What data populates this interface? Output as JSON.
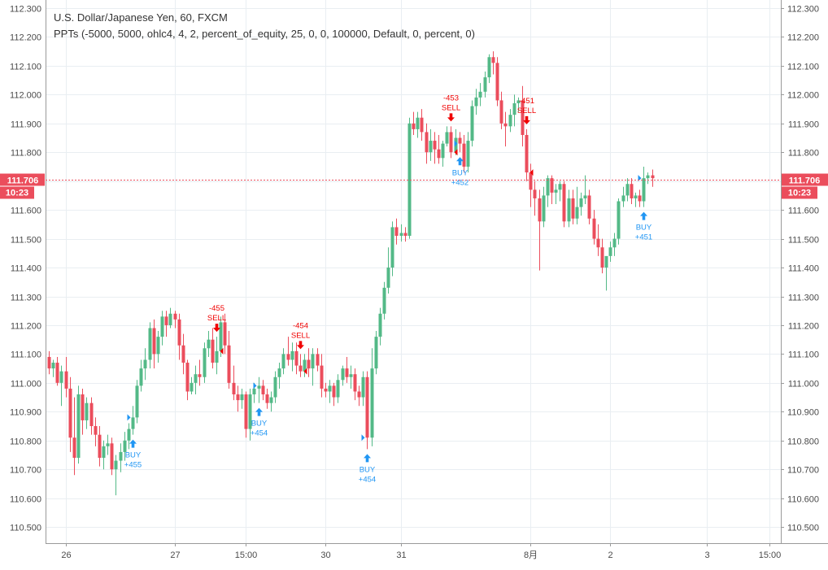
{
  "chart_data": {
    "type": "candlestick",
    "title": "U.S. Dollar/Japanese Yen, 60, FXCM",
    "subtitle": "PPTs (-5000, 5000, ohlc4, 4, 2, percent_of_equity, 25, 0, 0, 100000, Default, 0, percent, 0)",
    "ylim": [
      110.44,
      112.3
    ],
    "y_ticks": [
      "112.300",
      "112.200",
      "112.100",
      "112.000",
      "111.900",
      "111.800",
      "111.700",
      "111.600",
      "111.500",
      "111.400",
      "111.300",
      "111.200",
      "111.100",
      "111.000",
      "110.900",
      "110.800",
      "110.700",
      "110.600",
      "110.500"
    ],
    "x_ticks": [
      "26",
      "27",
      "15:00",
      "30",
      "31",
      "8月",
      "2",
      "3",
      "15:00"
    ],
    "x_tick_index": [
      4,
      30,
      47,
      66,
      84,
      115,
      134,
      157,
      172
    ],
    "grid": true,
    "last_price": "111.706",
    "last_value": 111.706,
    "countdown": "10:23",
    "colors": {
      "up": "#53b987",
      "down": "#eb4d5c",
      "buy": "#2196f3",
      "sell": "#f00000",
      "price_line": "#eb4d5c"
    },
    "candles": [
      [
        111.09,
        111.11,
        111.03,
        111.05
      ],
      [
        111.05,
        111.08,
        111.02,
        111.07
      ],
      [
        111.07,
        111.09,
        110.99,
        111.0
      ],
      [
        111.0,
        111.06,
        110.92,
        111.04
      ],
      [
        111.04,
        111.09,
        110.95,
        110.98
      ],
      [
        110.98,
        111.02,
        110.76,
        110.81
      ],
      [
        110.81,
        110.95,
        110.68,
        110.74
      ],
      [
        110.74,
        110.99,
        110.72,
        110.96
      ],
      [
        110.96,
        110.98,
        110.82,
        110.87
      ],
      [
        110.87,
        110.95,
        110.84,
        110.93
      ],
      [
        110.93,
        110.95,
        110.82,
        110.85
      ],
      [
        110.85,
        110.88,
        110.78,
        110.82
      ],
      [
        110.82,
        110.85,
        110.71,
        110.74
      ],
      [
        110.74,
        110.8,
        110.7,
        110.78
      ],
      [
        110.78,
        110.82,
        110.75,
        110.79
      ],
      [
        110.79,
        110.81,
        110.68,
        110.7
      ],
      [
        110.7,
        110.75,
        110.61,
        110.73
      ],
      [
        110.73,
        110.79,
        110.69,
        110.76
      ],
      [
        110.76,
        110.83,
        110.73,
        110.8
      ],
      [
        110.8,
        110.86,
        110.77,
        110.84
      ],
      [
        110.84,
        110.92,
        110.82,
        110.88
      ],
      [
        110.88,
        111.01,
        110.86,
        110.99
      ],
      [
        110.99,
        111.08,
        110.97,
        111.05
      ],
      [
        111.05,
        111.12,
        111.01,
        111.08
      ],
      [
        111.08,
        111.21,
        111.05,
        111.19
      ],
      [
        111.19,
        111.22,
        111.05,
        111.1
      ],
      [
        111.1,
        111.18,
        111.07,
        111.16
      ],
      [
        111.16,
        111.25,
        111.13,
        111.23
      ],
      [
        111.23,
        111.25,
        111.16,
        111.2
      ],
      [
        111.2,
        111.26,
        111.19,
        111.24
      ],
      [
        111.24,
        111.25,
        111.19,
        111.22
      ],
      [
        111.22,
        111.24,
        111.08,
        111.13
      ],
      [
        111.13,
        111.17,
        111.03,
        111.07
      ],
      [
        111.07,
        111.08,
        110.94,
        110.97
      ],
      [
        110.97,
        111.02,
        110.96,
        111.0
      ],
      [
        111.0,
        111.06,
        110.96,
        111.03
      ],
      [
        111.03,
        111.08,
        110.99,
        111.02
      ],
      [
        111.02,
        111.14,
        111.0,
        111.12
      ],
      [
        111.12,
        111.18,
        111.09,
        111.15
      ],
      [
        111.15,
        111.19,
        111.05,
        111.07
      ],
      [
        111.07,
        111.16,
        111.03,
        111.11
      ],
      [
        111.11,
        111.23,
        111.09,
        111.21
      ],
      [
        111.21,
        111.24,
        111.1,
        111.13
      ],
      [
        111.13,
        111.18,
        110.98,
        111.0
      ],
      [
        111.0,
        111.06,
        110.94,
        110.96
      ],
      [
        110.96,
        110.99,
        110.9,
        110.94
      ],
      [
        110.94,
        110.98,
        110.91,
        110.96
      ],
      [
        110.96,
        110.97,
        110.81,
        110.84
      ],
      [
        110.84,
        110.98,
        110.8,
        110.96
      ],
      [
        110.96,
        111.0,
        110.93,
        110.98
      ],
      [
        110.98,
        111.02,
        110.93,
        110.99
      ],
      [
        110.99,
        111.01,
        110.94,
        110.96
      ],
      [
        110.96,
        110.98,
        110.91,
        110.93
      ],
      [
        110.93,
        110.97,
        110.9,
        110.95
      ],
      [
        110.95,
        111.04,
        110.93,
        111.02
      ],
      [
        111.02,
        111.07,
        110.98,
        111.05
      ],
      [
        111.05,
        111.12,
        111.03,
        111.1
      ],
      [
        111.1,
        111.16,
        111.06,
        111.08
      ],
      [
        111.08,
        111.14,
        111.04,
        111.11
      ],
      [
        111.11,
        111.14,
        111.03,
        111.06
      ],
      [
        111.06,
        111.1,
        111.02,
        111.04
      ],
      [
        111.04,
        111.1,
        111.02,
        111.08
      ],
      [
        111.08,
        111.12,
        111.02,
        111.05
      ],
      [
        111.05,
        111.12,
        110.99,
        111.1
      ],
      [
        111.1,
        111.12,
        111.04,
        111.06
      ],
      [
        111.06,
        111.1,
        110.95,
        110.98
      ],
      [
        110.98,
        111.0,
        110.95,
        110.97
      ],
      [
        110.97,
        111.01,
        110.93,
        110.99
      ],
      [
        110.99,
        111.0,
        110.92,
        110.95
      ],
      [
        110.95,
        111.03,
        110.93,
        111.01
      ],
      [
        111.01,
        111.06,
        110.99,
        111.05
      ],
      [
        111.05,
        111.09,
        111.0,
        111.02
      ],
      [
        111.02,
        111.06,
        110.98,
        111.03
      ],
      [
        111.03,
        111.05,
        110.94,
        110.97
      ],
      [
        110.97,
        110.99,
        110.92,
        110.95
      ],
      [
        110.95,
        111.04,
        110.92,
        111.02
      ],
      [
        111.02,
        111.04,
        110.77,
        110.81
      ],
      [
        110.81,
        111.12,
        110.78,
        111.05
      ],
      [
        111.05,
        111.18,
        111.03,
        111.16
      ],
      [
        111.16,
        111.26,
        111.13,
        111.24
      ],
      [
        111.24,
        111.35,
        111.22,
        111.33
      ],
      [
        111.33,
        111.47,
        111.31,
        111.4
      ],
      [
        111.4,
        111.56,
        111.37,
        111.54
      ],
      [
        111.54,
        111.57,
        111.48,
        111.51
      ],
      [
        111.51,
        111.55,
        111.49,
        111.52
      ],
      [
        111.52,
        111.54,
        111.49,
        111.51
      ],
      [
        111.51,
        111.92,
        111.5,
        111.9
      ],
      [
        111.9,
        111.94,
        111.86,
        111.88
      ],
      [
        111.88,
        111.94,
        111.85,
        111.92
      ],
      [
        111.92,
        111.95,
        111.84,
        111.87
      ],
      [
        111.87,
        111.9,
        111.76,
        111.8
      ],
      [
        111.8,
        111.88,
        111.77,
        111.84
      ],
      [
        111.84,
        111.87,
        111.76,
        111.81
      ],
      [
        111.81,
        111.86,
        111.76,
        111.78
      ],
      [
        111.78,
        111.84,
        111.75,
        111.83
      ],
      [
        111.83,
        111.89,
        111.82,
        111.87
      ],
      [
        111.87,
        111.89,
        111.78,
        111.8
      ],
      [
        111.8,
        111.88,
        111.79,
        111.85
      ],
      [
        111.85,
        111.87,
        111.8,
        111.83
      ],
      [
        111.83,
        111.86,
        111.73,
        111.75
      ],
      [
        111.75,
        111.87,
        111.73,
        111.84
      ],
      [
        111.84,
        111.98,
        111.82,
        111.96
      ],
      [
        111.96,
        112.02,
        111.93,
        111.99
      ],
      [
        111.99,
        112.04,
        111.96,
        112.01
      ],
      [
        112.01,
        112.08,
        111.99,
        112.06
      ],
      [
        112.06,
        112.14,
        112.04,
        112.13
      ],
      [
        112.13,
        112.15,
        112.07,
        112.11
      ],
      [
        112.11,
        112.13,
        111.96,
        111.98
      ],
      [
        111.98,
        112.01,
        111.88,
        111.9
      ],
      [
        111.9,
        111.94,
        111.82,
        111.89
      ],
      [
        111.89,
        111.95,
        111.87,
        111.93
      ],
      [
        111.93,
        112.0,
        111.89,
        111.97
      ],
      [
        111.97,
        111.99,
        111.94,
        111.98
      ],
      [
        111.98,
        112.03,
        111.82,
        111.86
      ],
      [
        111.86,
        111.88,
        111.7,
        111.73
      ],
      [
        111.73,
        111.76,
        111.61,
        111.67
      ],
      [
        111.67,
        111.7,
        111.58,
        111.64
      ],
      [
        111.64,
        111.67,
        111.39,
        111.56
      ],
      [
        111.56,
        111.68,
        111.54,
        111.65
      ],
      [
        111.65,
        111.72,
        111.61,
        111.71
      ],
      [
        111.71,
        111.72,
        111.62,
        111.66
      ],
      [
        111.66,
        111.69,
        111.62,
        111.67
      ],
      [
        111.67,
        111.7,
        111.63,
        111.69
      ],
      [
        111.69,
        111.7,
        111.54,
        111.56
      ],
      [
        111.56,
        111.67,
        111.54,
        111.64
      ],
      [
        111.64,
        111.67,
        111.55,
        111.57
      ],
      [
        111.57,
        111.68,
        111.55,
        111.61
      ],
      [
        111.61,
        111.66,
        111.58,
        111.64
      ],
      [
        111.64,
        111.72,
        111.62,
        111.65
      ],
      [
        111.65,
        111.67,
        111.55,
        111.57
      ],
      [
        111.57,
        111.6,
        111.48,
        111.5
      ],
      [
        111.5,
        111.55,
        111.44,
        111.47
      ],
      [
        111.47,
        111.5,
        111.38,
        111.4
      ],
      [
        111.4,
        111.43,
        111.32,
        111.44
      ],
      [
        111.44,
        111.49,
        111.42,
        111.47
      ],
      [
        111.47,
        111.52,
        111.44,
        111.5
      ],
      [
        111.5,
        111.64,
        111.48,
        111.63
      ],
      [
        111.63,
        111.68,
        111.61,
        111.65
      ],
      [
        111.65,
        111.71,
        111.63,
        111.69
      ],
      [
        111.69,
        111.71,
        111.62,
        111.64
      ],
      [
        111.64,
        111.66,
        111.61,
        111.65
      ],
      [
        111.65,
        111.67,
        111.61,
        111.63
      ],
      [
        111.63,
        111.75,
        111.61,
        111.71
      ],
      [
        111.71,
        111.73,
        111.69,
        111.72
      ],
      [
        111.72,
        111.74,
        111.68,
        111.71
      ]
    ],
    "signals": [
      {
        "type": "buy",
        "index": 20,
        "label": "BUY",
        "value": "+455"
      },
      {
        "type": "sell",
        "index": 40,
        "label": "SELL",
        "value": "-455"
      },
      {
        "type": "buy",
        "index": 50,
        "label": "BUY",
        "value": "+454"
      },
      {
        "type": "sell",
        "index": 60,
        "label": "SELL",
        "value": "-454"
      },
      {
        "type": "buy",
        "index": 76,
        "label": "BUY",
        "value": "+454"
      },
      {
        "type": "sell",
        "index": 96,
        "label": "SELL",
        "value": "-453"
      },
      {
        "type": "buy",
        "index": 98,
        "label": "BUY",
        "value": "+452"
      },
      {
        "type": "sell",
        "index": 114,
        "label": "SELL",
        "value": "-451"
      },
      {
        "type": "buy",
        "index": 142,
        "label": "BUY",
        "value": "+451"
      }
    ]
  }
}
